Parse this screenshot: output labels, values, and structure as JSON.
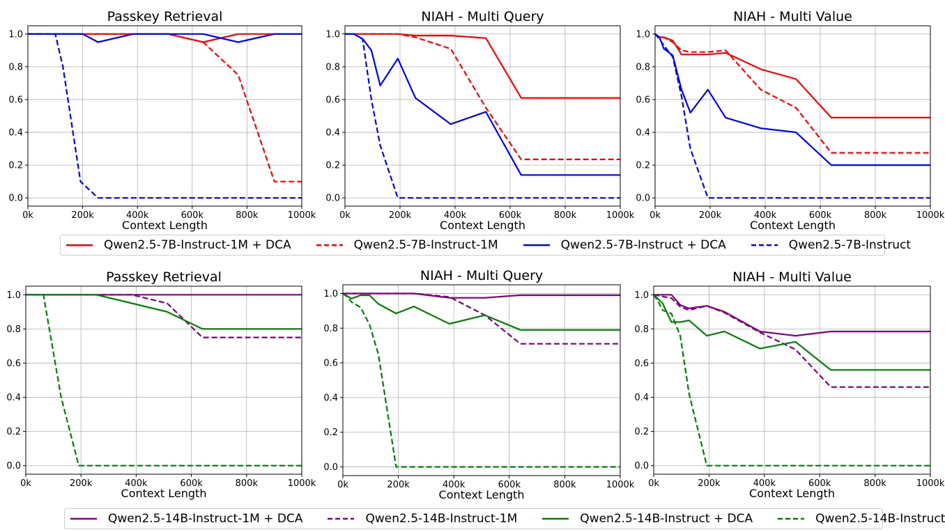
{
  "chart_data": [
    {
      "type": "line",
      "title": "Passkey Retrieval",
      "xlabel": "Context Length",
      "ylabel": "",
      "xticks": [
        "0k",
        "200k",
        "400k",
        "600k",
        "800k",
        "1000k"
      ],
      "xlim": [
        0,
        1000
      ],
      "ylim": [
        -0.05,
        1.05
      ],
      "yticks": [
        "0.0",
        "0.2",
        "0.4",
        "0.6",
        "0.8",
        "1.0"
      ],
      "grid": true,
      "series": [
        {
          "name": "Qwen2.5-7B-Instruct-1M + DCA",
          "color": "#ff0000",
          "dash": "solid",
          "x": [
            0,
            128,
            256,
            384,
            512,
            640,
            768,
            900,
            1000
          ],
          "y": [
            1.0,
            1.0,
            1.0,
            1.0,
            1.0,
            0.95,
            1.0,
            1.0,
            1.0
          ]
        },
        {
          "name": "Qwen2.5-7B-Instruct-1M",
          "color": "#ff0000",
          "dash": "dashed",
          "x": [
            0,
            128,
            256,
            384,
            512,
            640,
            768,
            900,
            1000
          ],
          "y": [
            1.0,
            1.0,
            1.0,
            1.0,
            1.0,
            0.95,
            0.75,
            0.1,
            0.1
          ]
        },
        {
          "name": "Qwen2.5-7B-Instruct + DCA",
          "color": "#0000ff",
          "dash": "solid",
          "x": [
            0,
            200,
            256,
            384,
            512,
            640,
            768,
            900,
            1000
          ],
          "y": [
            1.0,
            1.0,
            0.95,
            1.0,
            1.0,
            1.0,
            0.95,
            1.0,
            1.0
          ]
        },
        {
          "name": "Qwen2.5-7B-Instruct",
          "color": "#0000ff",
          "dash": "dashed",
          "x": [
            0,
            100,
            128,
            192,
            256,
            1000
          ],
          "y": [
            1.0,
            1.0,
            0.8,
            0.1,
            0.0,
            0.0
          ]
        }
      ]
    },
    {
      "type": "line",
      "title": "NIAH - Multi Query",
      "xlabel": "Context Length",
      "ylabel": "",
      "xticks": [
        "0k",
        "200k",
        "400k",
        "600k",
        "800k",
        "1000k"
      ],
      "xlim": [
        0,
        1000
      ],
      "ylim": [
        -0.05,
        1.05
      ],
      "yticks": [
        "0.0",
        "0.2",
        "0.4",
        "0.6",
        "0.8",
        "1.0"
      ],
      "grid": true,
      "series": [
        {
          "name": "Qwen2.5-7B-Instruct-1M + DCA",
          "color": "#ff0000",
          "dash": "solid",
          "x": [
            0,
            192,
            256,
            384,
            512,
            640,
            1000
          ],
          "y": [
            1.0,
            1.0,
            0.99,
            0.99,
            0.975,
            0.61,
            0.61
          ]
        },
        {
          "name": "Qwen2.5-7B-Instruct-1M",
          "color": "#ff0000",
          "dash": "dashed",
          "x": [
            0,
            192,
            256,
            384,
            512,
            640,
            1000
          ],
          "y": [
            1.0,
            1.0,
            0.98,
            0.91,
            0.55,
            0.235,
            0.235
          ]
        },
        {
          "name": "Qwen2.5-7B-Instruct + DCA",
          "color": "#0000ff",
          "dash": "solid",
          "x": [
            0,
            32,
            64,
            96,
            128,
            192,
            256,
            384,
            512,
            640,
            1000
          ],
          "y": [
            1.0,
            1.0,
            0.97,
            0.9,
            0.685,
            0.85,
            0.61,
            0.45,
            0.525,
            0.14,
            0.14
          ]
        },
        {
          "name": "Qwen2.5-7B-Instruct",
          "color": "#0000ff",
          "dash": "dashed",
          "x": [
            0,
            32,
            64,
            96,
            128,
            192,
            1000
          ],
          "y": [
            1.0,
            1.0,
            0.97,
            0.6,
            0.32,
            0.0,
            0.0
          ]
        }
      ]
    },
    {
      "type": "line",
      "title": "NIAH - Multi Value",
      "xlabel": "Context Length",
      "ylabel": "",
      "xticks": [
        "0k",
        "200k",
        "400k",
        "600k",
        "800k",
        "1000k"
      ],
      "xlim": [
        0,
        1000
      ],
      "ylim": [
        -0.05,
        1.05
      ],
      "yticks": [
        "0.0",
        "0.2",
        "0.4",
        "0.6",
        "0.8",
        "1.0"
      ],
      "grid": true,
      "series": [
        {
          "name": "Qwen2.5-7B-Instruct-1M + DCA",
          "color": "#ff0000",
          "dash": "solid",
          "x": [
            0,
            16,
            32,
            64,
            96,
            128,
            192,
            256,
            384,
            512,
            640,
            1000
          ],
          "y": [
            1.0,
            0.98,
            0.98,
            0.96,
            0.875,
            0.875,
            0.875,
            0.885,
            0.785,
            0.725,
            0.49,
            0.49
          ]
        },
        {
          "name": "Qwen2.5-7B-Instruct-1M",
          "color": "#ff0000",
          "dash": "dashed",
          "x": [
            0,
            16,
            32,
            64,
            96,
            128,
            192,
            256,
            384,
            512,
            640,
            1000
          ],
          "y": [
            1.0,
            0.98,
            0.98,
            0.95,
            0.9,
            0.89,
            0.89,
            0.9,
            0.66,
            0.55,
            0.275,
            0.275
          ]
        },
        {
          "name": "Qwen2.5-7B-Instruct + DCA",
          "color": "#0000ff",
          "dash": "solid",
          "x": [
            0,
            16,
            32,
            64,
            96,
            128,
            192,
            256,
            384,
            512,
            640,
            1000
          ],
          "y": [
            1.0,
            0.98,
            0.91,
            0.87,
            0.66,
            0.52,
            0.66,
            0.49,
            0.425,
            0.4,
            0.2,
            0.2
          ]
        },
        {
          "name": "Qwen2.5-7B-Instruct",
          "color": "#0000ff",
          "dash": "dashed",
          "x": [
            0,
            16,
            32,
            64,
            96,
            128,
            192,
            1000
          ],
          "y": [
            1.0,
            0.97,
            0.93,
            0.86,
            0.62,
            0.3,
            0.0,
            0.0
          ]
        }
      ]
    },
    {
      "type": "line",
      "title": "Passkey Retrieval",
      "xlabel": "Context Length",
      "ylabel": "",
      "xticks": [
        "0k",
        "200k",
        "400k",
        "600k",
        "800k",
        "1000k"
      ],
      "xlim": [
        0,
        1000
      ],
      "ylim": [
        -0.05,
        1.05
      ],
      "yticks": [
        "0.0",
        "0.2",
        "0.4",
        "0.6",
        "0.8",
        "1.0"
      ],
      "grid": true,
      "series": [
        {
          "name": "Qwen2.5-14B-Instruct-1M + DCA",
          "color": "#800080",
          "dash": "solid",
          "x": [
            0,
            128,
            256,
            384,
            512,
            640,
            1000
          ],
          "y": [
            1.0,
            1.0,
            1.0,
            1.0,
            1.0,
            1.0,
            1.0
          ]
        },
        {
          "name": "Qwen2.5-14B-Instruct-1M",
          "color": "#800080",
          "dash": "dashed",
          "x": [
            0,
            128,
            256,
            384,
            512,
            640,
            1000
          ],
          "y": [
            1.0,
            1.0,
            1.0,
            1.0,
            0.95,
            0.75,
            0.75
          ]
        },
        {
          "name": "Qwen2.5-14B-Instruct + DCA",
          "color": "#008000",
          "dash": "solid",
          "x": [
            0,
            128,
            256,
            384,
            512,
            640,
            1000
          ],
          "y": [
            1.0,
            1.0,
            1.0,
            0.95,
            0.9,
            0.8,
            0.8
          ]
        },
        {
          "name": "Qwen2.5-14B-Instruct",
          "color": "#008000",
          "dash": "dashed",
          "x": [
            0,
            64,
            128,
            192,
            1000
          ],
          "y": [
            1.0,
            1.0,
            0.4,
            0.0,
            0.0
          ]
        }
      ]
    },
    {
      "type": "line",
      "title": "NIAH - Multi Query",
      "xlabel": "Context Length",
      "ylabel": "",
      "xticks": [
        "0k",
        "200k",
        "400k",
        "600k",
        "800k",
        "1000k"
      ],
      "xlim": [
        0,
        1000
      ],
      "ylim": [
        -0.05,
        1.05
      ],
      "yticks": [
        "0.0",
        "0.2",
        "0.4",
        "0.6",
        "0.8",
        "1.0"
      ],
      "grid": true,
      "series": [
        {
          "name": "Qwen2.5-14B-Instruct-1M + DCA",
          "color": "#800080",
          "dash": "solid",
          "x": [
            0,
            192,
            256,
            384,
            512,
            640,
            1000
          ],
          "y": [
            1.0,
            1.0,
            1.0,
            0.975,
            0.975,
            0.99,
            0.99
          ]
        },
        {
          "name": "Qwen2.5-14B-Instruct-1M",
          "color": "#800080",
          "dash": "dashed",
          "x": [
            0,
            192,
            256,
            384,
            512,
            640,
            1000
          ],
          "y": [
            1.0,
            1.0,
            1.0,
            0.98,
            0.875,
            0.71,
            0.71
          ]
        },
        {
          "name": "Qwen2.5-14B-Instruct + DCA",
          "color": "#008000",
          "dash": "solid",
          "x": [
            0,
            32,
            64,
            96,
            128,
            192,
            256,
            384,
            512,
            640,
            1000
          ],
          "y": [
            1.0,
            0.97,
            0.99,
            0.99,
            0.94,
            0.885,
            0.925,
            0.825,
            0.875,
            0.79,
            0.79
          ]
        },
        {
          "name": "Qwen2.5-14B-Instruct",
          "color": "#008000",
          "dash": "dashed",
          "x": [
            0,
            16,
            32,
            64,
            96,
            128,
            192,
            1000
          ],
          "y": [
            1.0,
            0.98,
            0.95,
            0.92,
            0.82,
            0.65,
            0.0,
            0.0
          ]
        }
      ]
    },
    {
      "type": "line",
      "title": "NIAH - Multi Value",
      "xlabel": "Context Length",
      "ylabel": "",
      "xticks": [
        "0k",
        "200k",
        "400k",
        "600k",
        "800k",
        "1000k"
      ],
      "xlim": [
        0,
        1000
      ],
      "ylim": [
        -0.05,
        1.05
      ],
      "yticks": [
        "0.0",
        "0.2",
        "0.4",
        "0.6",
        "0.8",
        "1.0"
      ],
      "grid": true,
      "series": [
        {
          "name": "Qwen2.5-14B-Instruct-1M + DCA",
          "color": "#800080",
          "dash": "solid",
          "x": [
            0,
            32,
            64,
            96,
            128,
            192,
            256,
            384,
            512,
            640,
            1000
          ],
          "y": [
            1.0,
            1.0,
            1.0,
            0.94,
            0.92,
            0.935,
            0.9,
            0.785,
            0.76,
            0.785,
            0.785
          ]
        },
        {
          "name": "Qwen2.5-14B-Instruct-1M",
          "color": "#800080",
          "dash": "dashed",
          "x": [
            0,
            32,
            64,
            96,
            128,
            192,
            256,
            384,
            512,
            640,
            1000
          ],
          "y": [
            1.0,
            0.99,
            0.98,
            0.93,
            0.91,
            0.935,
            0.895,
            0.78,
            0.68,
            0.46,
            0.46
          ]
        },
        {
          "name": "Qwen2.5-14B-Instruct + DCA",
          "color": "#008000",
          "dash": "solid",
          "x": [
            0,
            32,
            64,
            96,
            128,
            192,
            256,
            384,
            512,
            640,
            1000
          ],
          "y": [
            1.0,
            0.95,
            0.84,
            0.84,
            0.85,
            0.76,
            0.785,
            0.685,
            0.725,
            0.56,
            0.56
          ]
        },
        {
          "name": "Qwen2.5-14B-Instruct",
          "color": "#008000",
          "dash": "dashed",
          "x": [
            0,
            16,
            32,
            64,
            96,
            128,
            192,
            1000
          ],
          "y": [
            1.0,
            0.96,
            0.91,
            0.89,
            0.76,
            0.42,
            0.0,
            0.0
          ]
        }
      ]
    }
  ],
  "legends": [
    {
      "items": [
        {
          "label": "Qwen2.5-7B-Instruct-1M + DCA",
          "color": "#ff0000",
          "dash": "solid"
        },
        {
          "label": "Qwen2.5-7B-Instruct-1M",
          "color": "#ff0000",
          "dash": "dashed"
        },
        {
          "label": "Qwen2.5-7B-Instruct + DCA",
          "color": "#0000ff",
          "dash": "solid"
        },
        {
          "label": "Qwen2.5-7B-Instruct",
          "color": "#0000ff",
          "dash": "dashed"
        }
      ]
    },
    {
      "items": [
        {
          "label": "Qwen2.5-14B-Instruct-1M + DCA",
          "color": "#800080",
          "dash": "solid"
        },
        {
          "label": "Qwen2.5-14B-Instruct-1M",
          "color": "#800080",
          "dash": "dashed"
        },
        {
          "label": "Qwen2.5-14B-Instruct + DCA",
          "color": "#008000",
          "dash": "solid"
        },
        {
          "label": "Qwen2.5-14B-Instruct",
          "color": "#008000",
          "dash": "dashed"
        }
      ]
    }
  ]
}
